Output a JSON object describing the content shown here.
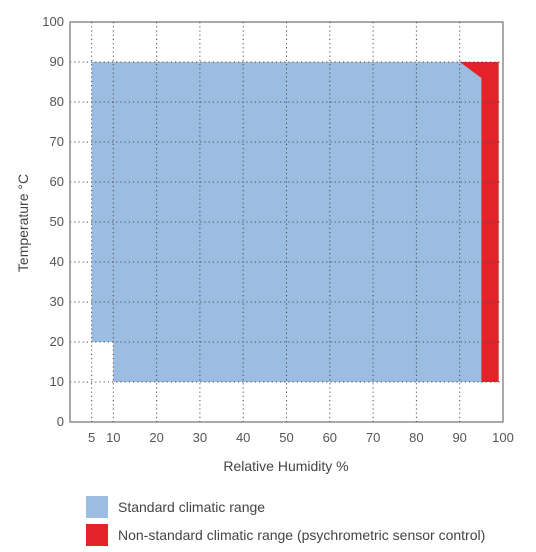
{
  "chart_data": {
    "type": "area",
    "xlabel": "Relative Humidity %",
    "ylabel": "Temperature °C",
    "xlim": [
      0,
      100
    ],
    "ylim": [
      0,
      100
    ],
    "x_ticks": [
      5,
      10,
      20,
      30,
      40,
      50,
      60,
      70,
      80,
      90,
      100
    ],
    "y_ticks": [
      0,
      10,
      20,
      30,
      40,
      50,
      60,
      70,
      80,
      90,
      100
    ],
    "grid": true,
    "legend_position": "bottom",
    "series": [
      {
        "name": "Standard climatic range",
        "color": "#9bbde2",
        "polygon": [
          [
            5,
            90
          ],
          [
            90,
            90
          ],
          [
            95,
            86
          ],
          [
            95,
            10
          ],
          [
            10,
            10
          ],
          [
            10,
            20
          ],
          [
            5,
            20
          ]
        ]
      },
      {
        "name": "Non-standard climatic range (psychrometric sensor control)",
        "color": "#e42229",
        "polygon": [
          [
            90,
            90
          ],
          [
            99,
            90
          ],
          [
            99,
            10
          ],
          [
            95,
            10
          ],
          [
            95,
            86
          ]
        ]
      }
    ]
  }
}
